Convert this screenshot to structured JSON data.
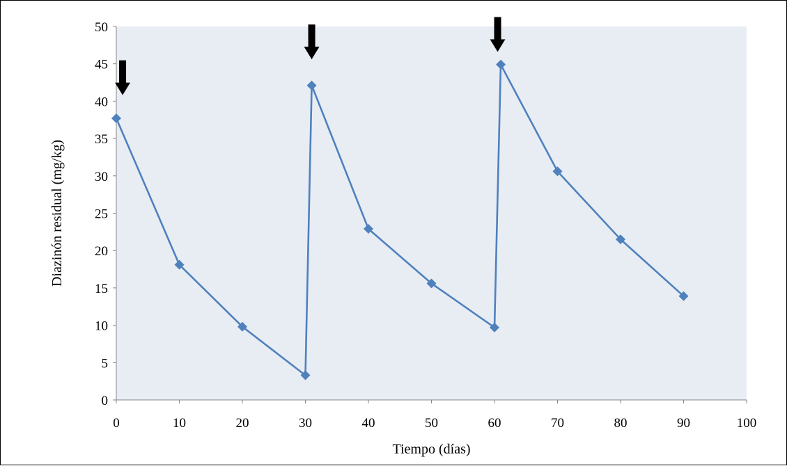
{
  "chart_data": {
    "type": "line",
    "title": "",
    "xlabel": "Tiempo (días)",
    "ylabel": "Diazinón residual (mg/kg)",
    "xlim": [
      0,
      100
    ],
    "ylim": [
      0,
      50
    ],
    "x_ticks": [
      "0",
      "10",
      "20",
      "30",
      "40",
      "50",
      "60",
      "70",
      "80",
      "90",
      "100"
    ],
    "y_ticks": [
      "0",
      "5",
      "10",
      "15",
      "20",
      "25",
      "30",
      "35",
      "40",
      "45",
      "50"
    ],
    "grid": false,
    "legend": "none",
    "colors": {
      "plot_background": "#e8edf4",
      "series": "#4f81bd",
      "arrows": "#000000"
    },
    "series": [
      {
        "x": [
          0,
          10,
          20,
          30,
          31,
          40,
          50,
          60,
          61,
          70,
          80,
          90
        ],
        "y": [
          37.7,
          18.1,
          9.8,
          3.3,
          42.1,
          22.9,
          15.6,
          9.7,
          44.9,
          30.6,
          21.5,
          13.9
        ],
        "marker": "diamond"
      }
    ],
    "annotations": [
      {
        "type": "down-arrow",
        "x": 1,
        "y_tip": 40.8
      },
      {
        "type": "down-arrow",
        "x": 31,
        "y_tip": 45.6
      },
      {
        "type": "down-arrow",
        "x": 60.5,
        "y_tip": 46.6
      }
    ]
  }
}
